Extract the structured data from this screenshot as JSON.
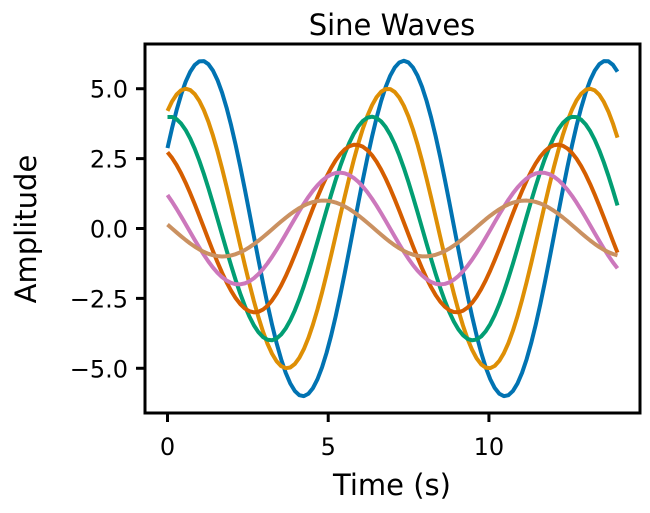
{
  "chart_data": {
    "type": "line",
    "title": "Sine Waves",
    "xlabel": "Time (s)",
    "ylabel": "Amplitude",
    "xlim": [
      -0.7,
      14.7
    ],
    "ylim": [
      -6.6,
      6.6
    ],
    "xticks": [
      0,
      5,
      10
    ],
    "xtick_labels": [
      "0",
      "5",
      "10"
    ],
    "yticks": [
      -5.0,
      -2.5,
      0.0,
      2.5,
      5.0
    ],
    "ytick_labels": [
      "−5.0",
      "−2.5",
      "0.0",
      "2.5",
      "5.0"
    ],
    "grid": false,
    "legend": "none",
    "x_range": [
      0,
      14
    ],
    "x_samples": 100,
    "series": [
      {
        "function": "6*sin(x + 0.5)",
        "amplitude": 6,
        "frequency": 1,
        "phase": 0.5,
        "color": "#0173b2"
      },
      {
        "function": "5*sin(x + 1.0)",
        "amplitude": 5,
        "frequency": 1,
        "phase": 1.0,
        "color": "#de8f05"
      },
      {
        "function": "4*sin(x + 1.5)",
        "amplitude": 4,
        "frequency": 1,
        "phase": 1.5,
        "color": "#029e73"
      },
      {
        "function": "3*sin(x + 2.0)",
        "amplitude": 3,
        "frequency": 1,
        "phase": 2.0,
        "color": "#d55e00"
      },
      {
        "function": "2*sin(x + 2.5)",
        "amplitude": 2,
        "frequency": 1,
        "phase": 2.5,
        "color": "#cc78bc"
      },
      {
        "function": "1*sin(x + 3.0)",
        "amplitude": 1,
        "frequency": 1,
        "phase": 3.0,
        "color": "#ca9161"
      }
    ]
  }
}
